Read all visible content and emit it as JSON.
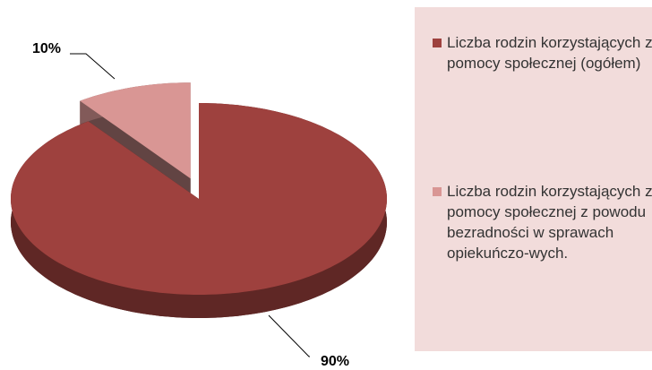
{
  "chart_data": {
    "type": "pie",
    "categories": [
      "Liczba rodzin korzystających z pomocy społecznej (ogółem)",
      "Liczba rodzin korzystających z pomocy społecznej z powodu bezradności w sprawach opiekuńczo-wych."
    ],
    "values": [
      90,
      10
    ],
    "value_labels": [
      "90%",
      "10%"
    ],
    "colors": [
      "#9e413e",
      "#d99694"
    ],
    "legend": "right"
  }
}
